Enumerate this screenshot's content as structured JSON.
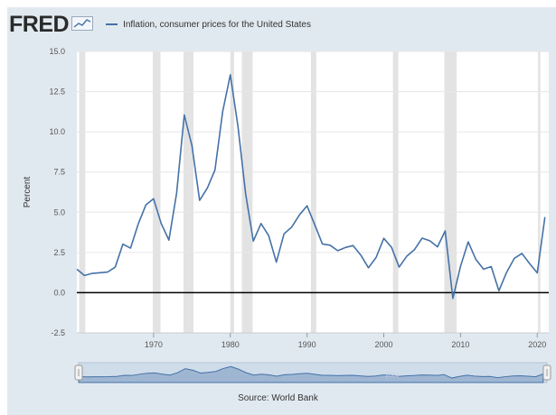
{
  "header": {
    "logo_text": "FRED",
    "logo_icon": "chart-line-icon",
    "series_title": "Inflation, consumer prices for the United States"
  },
  "footer": {
    "source": "Source: World Bank"
  },
  "colors": {
    "line": "#4572a7",
    "recession": "#e3e3e3",
    "frame": "#e1e9f0",
    "zero_line": "#000000",
    "navigator_fill": "#9fb6d2",
    "navigator_bg": "#cfdcea"
  },
  "chart_data": {
    "type": "line",
    "title": "",
    "xlabel": "",
    "ylabel": "Percent",
    "xlim": [
      1960,
      2021.5
    ],
    "ylim": [
      -2.5,
      15.0
    ],
    "yticks": [
      -2.5,
      0.0,
      2.5,
      5.0,
      7.5,
      10.0,
      12.5,
      15.0
    ],
    "ytick_labels": [
      "-2.5",
      "0.0",
      "2.5",
      "5.0",
      "7.5",
      "10.0",
      "12.5",
      "15.0"
    ],
    "xticks": [
      1970,
      1980,
      1990,
      2000,
      2010,
      2020
    ],
    "xtick_labels": [
      "1970",
      "1980",
      "1990",
      "2000",
      "2010",
      "2020"
    ],
    "grid": "horizontal",
    "legend": "top",
    "recessions": [
      [
        1960.3,
        1961.1
      ],
      [
        1969.9,
        1970.9
      ],
      [
        1973.9,
        1975.2
      ],
      [
        1980.0,
        1980.5
      ],
      [
        1981.5,
        1982.9
      ],
      [
        1990.5,
        1991.2
      ],
      [
        2001.2,
        2001.9
      ],
      [
        2007.9,
        2009.5
      ],
      [
        2020.1,
        2020.4
      ]
    ],
    "series": [
      {
        "name": "Inflation, consumer prices for the United States",
        "x": [
          1960,
          1961,
          1962,
          1963,
          1964,
          1965,
          1966,
          1967,
          1968,
          1969,
          1970,
          1971,
          1972,
          1973,
          1974,
          1975,
          1976,
          1977,
          1978,
          1979,
          1980,
          1981,
          1982,
          1983,
          1984,
          1985,
          1986,
          1987,
          1988,
          1989,
          1990,
          1991,
          1992,
          1993,
          1994,
          1995,
          1996,
          1997,
          1998,
          1999,
          2000,
          2001,
          2002,
          2003,
          2004,
          2005,
          2006,
          2007,
          2008,
          2009,
          2010,
          2011,
          2012,
          2013,
          2014,
          2015,
          2016,
          2017,
          2018,
          2019,
          2020,
          2021
        ],
        "values": [
          1.46,
          1.07,
          1.2,
          1.24,
          1.28,
          1.59,
          3.02,
          2.77,
          4.27,
          5.46,
          5.84,
          4.29,
          3.27,
          6.18,
          11.05,
          9.14,
          5.74,
          6.5,
          7.63,
          11.25,
          13.55,
          10.33,
          6.13,
          3.21,
          4.3,
          3.55,
          1.9,
          3.66,
          4.08,
          4.83,
          5.4,
          4.23,
          3.03,
          2.95,
          2.61,
          2.81,
          2.93,
          2.34,
          1.55,
          2.19,
          3.38,
          2.83,
          1.59,
          2.27,
          2.68,
          3.39,
          3.23,
          2.85,
          3.84,
          -0.36,
          1.64,
          3.16,
          2.07,
          1.46,
          1.62,
          0.12,
          1.26,
          2.13,
          2.44,
          1.81,
          1.23,
          4.7
        ]
      }
    ],
    "navigator": {
      "xtick_labels": [
        "2000"
      ]
    }
  }
}
